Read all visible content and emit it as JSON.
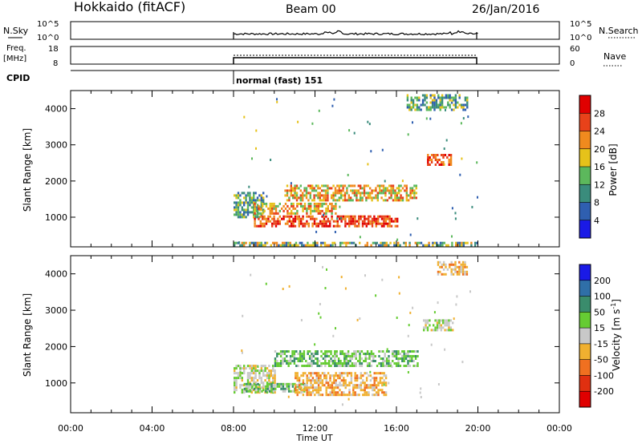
{
  "header": {
    "title": "Hokkaido (fitACF)",
    "beam": "Beam 00",
    "date": "26/Jan/2016"
  },
  "nsky_panel": {
    "left_label": "N.Sky",
    "right_label": "N.Search",
    "ticks": [
      "10^5",
      "10^0"
    ]
  },
  "freq_panel": {
    "left_label_1": "Freq.",
    "left_label_2": "[MHz]",
    "left_ticks": [
      "18",
      "8"
    ],
    "right_ticks": [
      "60",
      "0"
    ],
    "right_label": "Nave"
  },
  "cpid": {
    "label": "CPID",
    "mode_text": "normal (fast) 151"
  },
  "x_axis": {
    "label": "Time UT",
    "tick_labels": [
      "00:00",
      "04:00",
      "08:00",
      "12:00",
      "16:00",
      "20:00",
      "00:00"
    ]
  },
  "chart_data": [
    {
      "type": "heatmap",
      "name": "power",
      "ylabel": "Slant Range [km]",
      "yticks": [
        1000,
        2000,
        3000,
        4000
      ],
      "ylim": [
        180,
        4500
      ],
      "xlim_hours": [
        0,
        24
      ],
      "colorbar": {
        "label": "Power [dB]",
        "ticks": [
          "4",
          "8",
          "12",
          "16",
          "20",
          "24",
          "28"
        ],
        "colors": [
          "#1a1ae6",
          "#2f5fb0",
          "#3a8c7c",
          "#5cb85c",
          "#e6c21a",
          "#f08a1e",
          "#e8421a",
          "#e00000"
        ]
      },
      "bands": [
        {
          "x": [
            8,
            9.5
          ],
          "y": [
            1000,
            1700
          ],
          "level": "green"
        },
        {
          "x": [
            9,
            13
          ],
          "y": [
            1100,
            1400
          ],
          "level": "orange"
        },
        {
          "x": [
            9,
            16
          ],
          "y": [
            750,
            1050
          ],
          "level": "red"
        },
        {
          "x": [
            10.5,
            17
          ],
          "y": [
            1500,
            1900
          ],
          "level": "orange"
        },
        {
          "x": [
            17.5,
            18.7
          ],
          "y": [
            2450,
            2750
          ],
          "level": "red"
        },
        {
          "x": [
            16.5,
            19.5
          ],
          "y": [
            4000,
            4400
          ],
          "level": "green"
        },
        {
          "x": [
            8,
            20
          ],
          "y": [
            200,
            320
          ],
          "level": "mixed"
        }
      ]
    },
    {
      "type": "heatmap",
      "name": "velocity",
      "ylabel": "Slant Range [km]",
      "yticks": [
        1000,
        2000,
        3000,
        4000
      ],
      "ylim": [
        180,
        4500
      ],
      "xlim_hours": [
        0,
        24
      ],
      "colorbar": {
        "label": "Velocity [m s^-1]",
        "ticks": [
          "200",
          "100",
          "50",
          "15",
          "-15",
          "-50",
          "-100",
          "-200"
        ],
        "colors": [
          "#1a1ae6",
          "#2f6fa8",
          "#3a8c6c",
          "#66cc33",
          "#c8c8c8",
          "#f0b030",
          "#f07020",
          "#e03010",
          "#e00000"
        ]
      },
      "bands": [
        {
          "x": [
            8,
            10
          ],
          "y": [
            750,
            1500
          ],
          "level": "gray"
        },
        {
          "x": [
            8.5,
            11.5
          ],
          "y": [
            750,
            1000
          ],
          "level": "green"
        },
        {
          "x": [
            11,
            15.5
          ],
          "y": [
            700,
            1300
          ],
          "level": "orange"
        },
        {
          "x": [
            10,
            17
          ],
          "y": [
            1500,
            1900
          ],
          "level": "green"
        },
        {
          "x": [
            17.3,
            18.8
          ],
          "y": [
            2450,
            2750
          ],
          "level": "gray"
        },
        {
          "x": [
            18,
            19.5
          ],
          "y": [
            4000,
            4350
          ],
          "level": "orange"
        }
      ]
    }
  ]
}
